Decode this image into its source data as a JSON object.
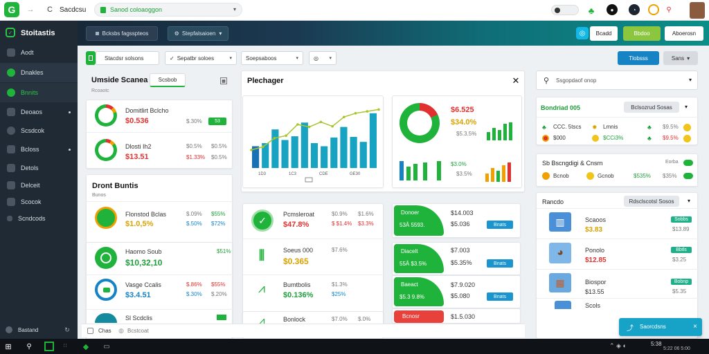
{
  "browser": {
    "tab_title": "Sacdcsu",
    "url": "Sanod coloaoggon",
    "profile_initial": "G"
  },
  "browser_icons": [
    "back-arrow-icon",
    "reload-icon",
    "star-icon",
    "leaf-icon",
    "user-icon",
    "clock-icon",
    "bell-icon"
  ],
  "sidebar": {
    "brand": "Stoitastis",
    "items": [
      {
        "label": "Aodt"
      },
      {
        "label": "Dnakles"
      },
      {
        "label": "Bnnits"
      },
      {
        "label": "Deoaos"
      },
      {
        "label": "Scsdcok"
      },
      {
        "label": "Bcloss"
      },
      {
        "label": "Detols"
      },
      {
        "label": "Delceit"
      },
      {
        "label": "Scocok"
      },
      {
        "label": "Scndcods"
      }
    ],
    "footer_label": "Bastand"
  },
  "appbar": {
    "pill_left": "Bcksbs fagsspteos",
    "pill_mid": "Stepfalsaioen",
    "btn_white": "Bcadd",
    "btn_green": "Bbdoo",
    "btn_right": "Aboerosn"
  },
  "filters": {
    "f1": "Stacdsr solsons",
    "f2": "Sepatbr soloes",
    "f3": "Soepsaboos",
    "f4": "",
    "btn_primary": "Tlobsss",
    "btn_secondary": "Sans"
  },
  "col1": {
    "title": "Umside Scanea",
    "tab": "Scsbob",
    "subtitle": "Rcoaotc",
    "rows": [
      {
        "name": "Domitlirt Bclcho",
        "value": "$0.536",
        "pct": "$.30%",
        "badge": "53"
      },
      {
        "name": "Dlosti Ih2",
        "value": "$13.51",
        "pct": "$1.33%",
        "pct2": "$0.5%"
      }
    ],
    "section2_title": "Dront Buntis",
    "section2_sub": "Bunos",
    "list": [
      {
        "name": "Flonstod Bclas",
        "value": "$1.0,5%",
        "a": "$.09%",
        "b": "$55%",
        "c": "$.50%",
        "d": "$72%"
      },
      {
        "name": "Haomo Soub",
        "value": "$10,32,10",
        "a": "$51%"
      },
      {
        "name": "Vasge Ccalis",
        "value": "$3.4.51",
        "a": "$.86%",
        "b": "$55%",
        "c": "$.30%",
        "d": "$.20%"
      },
      {
        "name": "Sl Scdclis",
        "value": ""
      }
    ],
    "bottom_labels": [
      "Chas",
      "Bcstcoat"
    ]
  },
  "col2": {
    "panel_title": "Plechager",
    "bar_chart_values": [
      3.5,
      4,
      6.2,
      4.5,
      5.1,
      7.3,
      4,
      3.5,
      4.9,
      6.6,
      5,
      4.2,
      8.8
    ],
    "line_chart_values": [
      2.9,
      3.4,
      4.8,
      5.2,
      7,
      6.6,
      7.4,
      6.7,
      8.2,
      8.8,
      9.1,
      9.4
    ],
    "bar_x_labels": [
      "1D3",
      "1C3",
      "CDE",
      "GE30"
    ],
    "donut": {
      "value1": "$6.525",
      "value2": "$34.0%",
      "value3": "$5.3.5%",
      "percent": "$3.0%",
      "percent2": "$3.5%",
      "green_share": 0.82
    },
    "list": [
      {
        "name": "Pcmsleroat",
        "a": "$0.9%",
        "b": "$1.6%",
        "c": "$ $1.4%",
        "d": "$3.3%",
        "value": "$47.8%"
      },
      {
        "name": "Soeus 000",
        "a": "$7.6%",
        "value": "$0.365"
      },
      {
        "name": "Bumtbolis",
        "a": "$1.3%",
        "b": "$25%",
        "value": "$0.136%"
      },
      {
        "name": "Bonlock",
        "a": "$7.0%",
        "b": "$.0%",
        "value": ""
      }
    ]
  },
  "col3": {
    "cards": [
      {
        "label": "Donoer",
        "sub": "53Â 5593.",
        "val1": "$14.003",
        "val2": "$5.036",
        "btn": "Bnats"
      },
      {
        "label": "Diacelt",
        "sub": "55Â $3.5%",
        "val1": "$7.003",
        "val2": "$5.35%",
        "btn": "Bnats"
      },
      {
        "label": "Baeact",
        "sub": "$5.3 9.8%",
        "val1": "$7.9.020",
        "val2": "$5.080",
        "btn": "Bnats"
      },
      {
        "label": "Bcnosr",
        "sub": "",
        "val1": "$1.5.030",
        "val2": "",
        "btn": ""
      }
    ]
  },
  "col4": {
    "search_placeholder": "Ssgopdaof onop",
    "panel1_title": "Bondriad 005",
    "panel1_dropdown": "Bclsozrud Sosas",
    "panel1_rows": [
      {
        "a": "CCC. 5tscs",
        "b": "Lmnis",
        "c": "$9.5%"
      },
      {
        "a": "$000",
        "b": "$CCi3%",
        "c": "$9.5%"
      }
    ],
    "panel2_title": "Sb Bscngdigi & Cnsrn",
    "panel2_rows": [
      {
        "a": "Bcnob",
        "b": "Gcnob",
        "c": "$535%",
        "d": "$35%"
      }
    ],
    "panel2_extra": "Eorba",
    "panel3_title": "Rancdo",
    "panel3_dropdown": "Rdsclscotsl Sosos",
    "products": [
      {
        "name": "Scaoos",
        "price": "$3.83",
        "badge": "Sobbs",
        "value": "$13.89"
      },
      {
        "name": "Ponolo",
        "price": "$12.85",
        "badge": "Bbtls",
        "value": "$3.25"
      },
      {
        "name": "Biospor",
        "price": "$13.55",
        "badge": "Bobnp",
        "value": "$5.35"
      },
      {
        "name": "Scols",
        "price": "",
        "badge": "",
        "value": ""
      }
    ],
    "toast": "Saorcdsns",
    "close_label": "×"
  },
  "taskbar": {
    "time": "5:38",
    "date": "5:22 06 5:00"
  }
}
